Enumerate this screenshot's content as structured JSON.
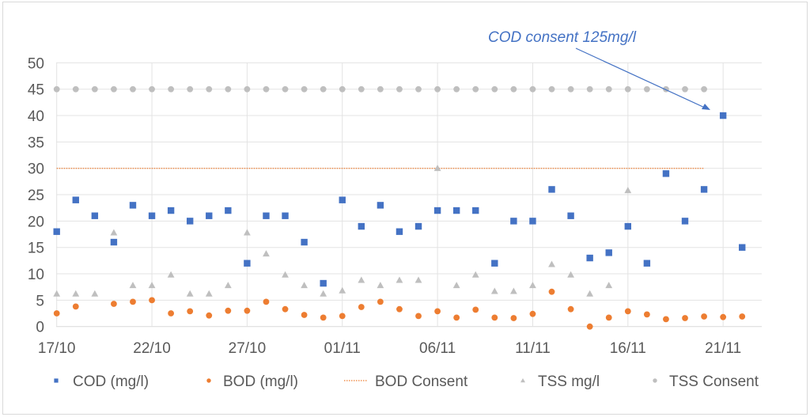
{
  "chart_data": {
    "type": "scatter",
    "title": "",
    "xlabel": "",
    "ylabel": "",
    "ylim": [
      0,
      50
    ],
    "y_ticks": [
      "0",
      "5",
      "10",
      "15",
      "20",
      "25",
      "30",
      "35",
      "40",
      "45",
      "50"
    ],
    "x_range_days": [
      "17/10",
      "22/11"
    ],
    "x_tick_labels": [
      "17/10",
      "22/10",
      "27/10",
      "01/11",
      "06/11",
      "11/11",
      "16/11",
      "21/11"
    ],
    "x_dates": [
      "17/10",
      "18/10",
      "19/10",
      "20/10",
      "21/10",
      "22/10",
      "23/10",
      "24/10",
      "25/10",
      "26/10",
      "27/10",
      "28/10",
      "29/10",
      "30/10",
      "31/10",
      "01/11",
      "02/11",
      "03/11",
      "04/11",
      "05/11",
      "06/11",
      "07/11",
      "08/11",
      "09/11",
      "10/11",
      "11/11",
      "12/11",
      "13/11",
      "14/11",
      "15/11",
      "16/11",
      "17/11",
      "18/11",
      "19/11",
      "20/11",
      "21/11",
      "22/11"
    ],
    "grid": true,
    "legend_position": "bottom",
    "series": [
      {
        "name": "COD (mg/l)",
        "marker": "square",
        "color": "#4472C4",
        "values": [
          18,
          24,
          21,
          16,
          23,
          21,
          22,
          20,
          21,
          22,
          12,
          21,
          21,
          16,
          8.2,
          24,
          19,
          23,
          18,
          19,
          22,
          22,
          22,
          12,
          20,
          20,
          26,
          21,
          13,
          14,
          19,
          12,
          29,
          20,
          26,
          40,
          15
        ]
      },
      {
        "name": "BOD (mg/l)",
        "marker": "circle",
        "color": "#ED7D31",
        "values": [
          2.5,
          3.8,
          null,
          4.3,
          4.7,
          5.0,
          2.5,
          2.9,
          2.1,
          3.0,
          3.0,
          4.7,
          3.3,
          2.2,
          1.7,
          2.0,
          3.7,
          4.7,
          3.3,
          2.0,
          2.9,
          1.7,
          3.2,
          1.7,
          1.6,
          2.4,
          6.6,
          3.3,
          0,
          1.7,
          2.9,
          2.3,
          1.4,
          1.6,
          1.9,
          1.8,
          1.9
        ]
      },
      {
        "name": "BOD Consent",
        "marker": "dotted-line",
        "color": "#ED7D31",
        "values": [
          30,
          30,
          30,
          30,
          30,
          30,
          30,
          30,
          30,
          30,
          30,
          30,
          30,
          30,
          30,
          30,
          30,
          30,
          30,
          30,
          30,
          30,
          30,
          30,
          30,
          30,
          30,
          30,
          30,
          30,
          30,
          30,
          30,
          30,
          30,
          null,
          null
        ]
      },
      {
        "name": "TSS mg/l",
        "marker": "triangle",
        "color": "#BFBFBF",
        "values": [
          6.2,
          6.2,
          6.2,
          17.8,
          7.8,
          7.8,
          9.8,
          6.2,
          6.2,
          7.8,
          17.8,
          13.8,
          9.8,
          7.8,
          6.2,
          6.8,
          8.8,
          7.8,
          8.8,
          8.8,
          30,
          7.8,
          9.8,
          6.7,
          6.7,
          7.8,
          11.8,
          9.8,
          6.2,
          7.8,
          25.8,
          null,
          null,
          null,
          null,
          null,
          null
        ]
      },
      {
        "name": "TSS Consent",
        "marker": "circle",
        "color": "#BFBFBF",
        "values": [
          45,
          45,
          45,
          45,
          45,
          45,
          45,
          45,
          45,
          45,
          45,
          45,
          45,
          45,
          45,
          45,
          45,
          45,
          45,
          45,
          45,
          45,
          45,
          45,
          45,
          45,
          45,
          45,
          45,
          45,
          45,
          45,
          45,
          45,
          45,
          null,
          null
        ]
      }
    ],
    "annotations": [
      {
        "text": "COD consent 125mg/l",
        "points_to": {
          "x": "20/11",
          "y": 41
        }
      }
    ]
  }
}
